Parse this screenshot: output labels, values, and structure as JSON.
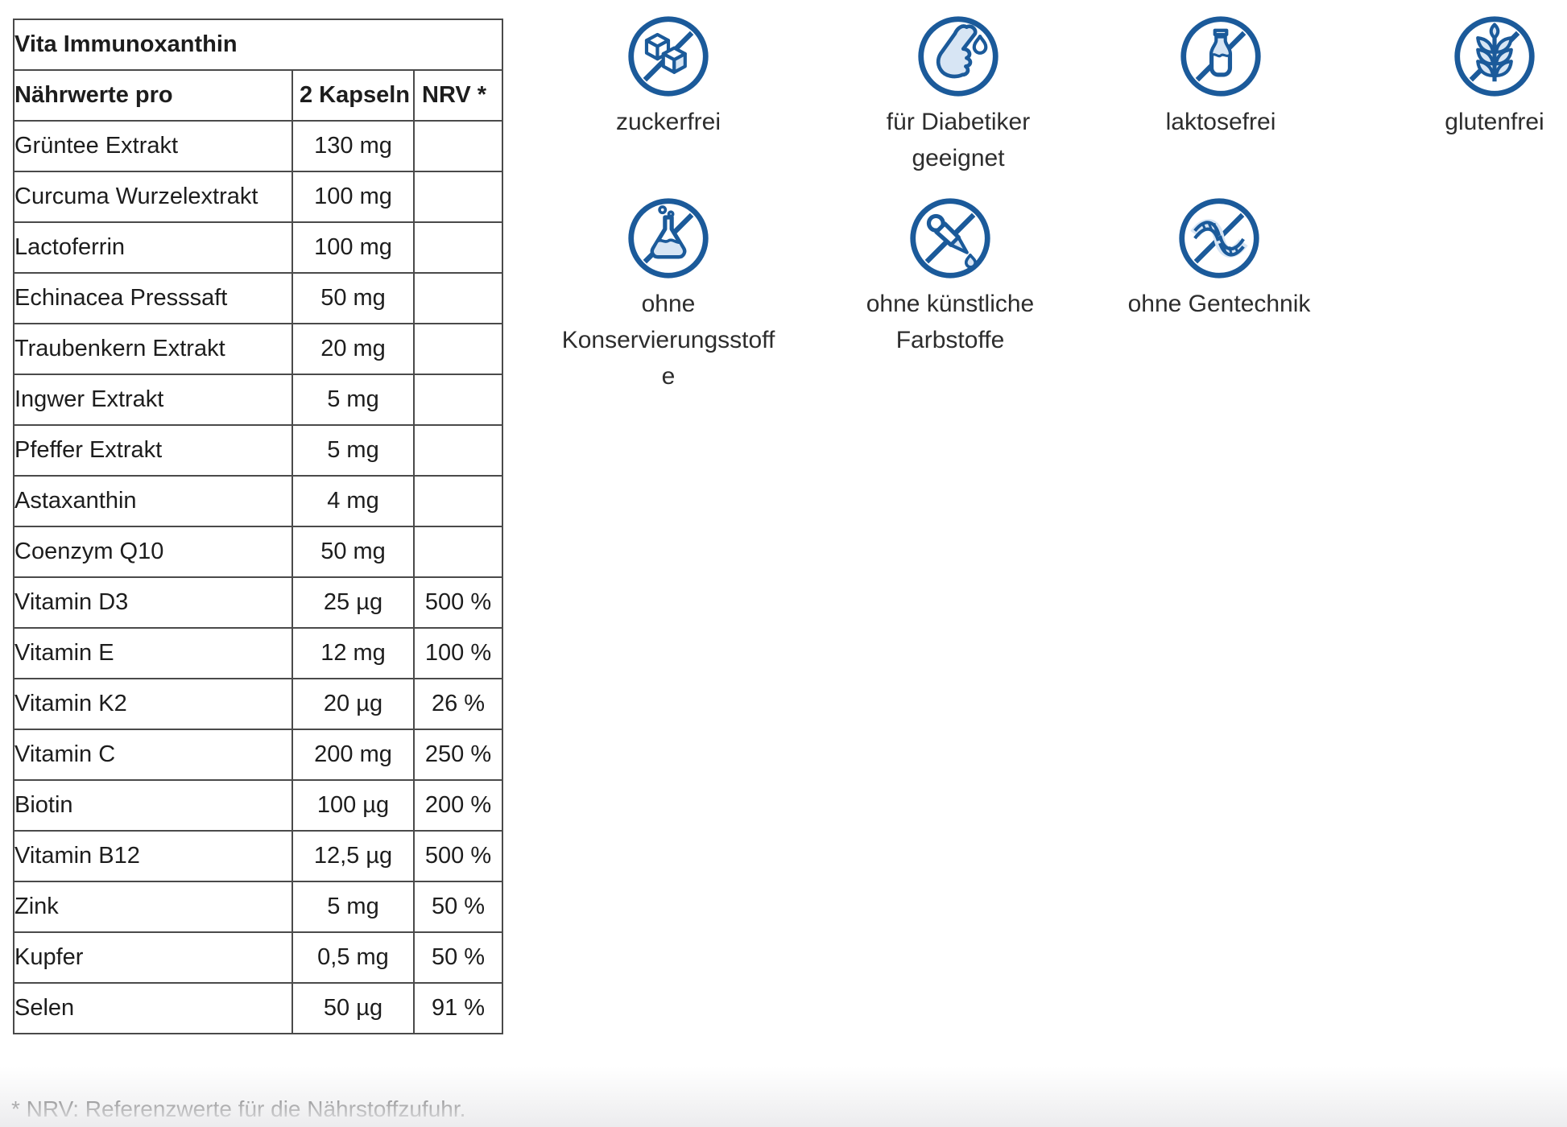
{
  "table": {
    "title": "Vita Immunoxanthin",
    "headers": [
      "Nährwerte pro",
      "2 Kapseln",
      "NRV *"
    ],
    "rows": [
      {
        "name": "Grüntee Extrakt",
        "amount": "130 mg",
        "nrv": ""
      },
      {
        "name": "Curcuma Wurzelextrakt",
        "amount": "100 mg",
        "nrv": ""
      },
      {
        "name": "Lactoferrin",
        "amount": "100 mg",
        "nrv": ""
      },
      {
        "name": "Echinacea Presssaft",
        "amount": "50 mg",
        "nrv": ""
      },
      {
        "name": "Traubenkern Extrakt",
        "amount": "20 mg",
        "nrv": ""
      },
      {
        "name": "Ingwer Extrakt",
        "amount": "5 mg",
        "nrv": ""
      },
      {
        "name": "Pfeffer Extrakt",
        "amount": "5 mg",
        "nrv": ""
      },
      {
        "name": "Astaxanthin",
        "amount": "4 mg",
        "nrv": ""
      },
      {
        "name": "Coenzym Q10",
        "amount": "50 mg",
        "nrv": ""
      },
      {
        "name": "Vitamin D3",
        "amount": "25 µg",
        "nrv": "500 %"
      },
      {
        "name": "Vitamin E",
        "amount": "12 mg",
        "nrv": "100 %"
      },
      {
        "name": "Vitamin K2",
        "amount": "20 µg",
        "nrv": "26 %"
      },
      {
        "name": "Vitamin C",
        "amount": "200 mg",
        "nrv": "250 %"
      },
      {
        "name": "Biotin",
        "amount": "100 µg",
        "nrv": "200 %"
      },
      {
        "name": "Vitamin B12",
        "amount": "12,5 µg",
        "nrv": "500 %"
      },
      {
        "name": "Zink",
        "amount": "5 mg",
        "nrv": "50 %"
      },
      {
        "name": "Kupfer",
        "amount": "0,5 mg",
        "nrv": "50 %"
      },
      {
        "name": "Selen",
        "amount": "50 µg",
        "nrv": "91 %"
      }
    ]
  },
  "footnote": "* NRV: Referenzwerte für die Nährstoffzufuhr.",
  "badges": [
    {
      "icon": "no-sugar-icon",
      "lines": [
        "zuckerfrei"
      ]
    },
    {
      "icon": "diabetic-friendly-icon",
      "lines": [
        "für Diabetiker",
        "geeignet"
      ]
    },
    {
      "icon": "lactose-free-icon",
      "lines": [
        "laktosefrei"
      ]
    },
    {
      "icon": "gluten-free-icon",
      "lines": [
        "glutenfrei"
      ]
    },
    {
      "icon": "no-preservatives-icon",
      "lines": [
        "ohne",
        "Konservierungsstoff",
        "e"
      ]
    },
    {
      "icon": "no-artificial-colors-icon",
      "lines": [
        "ohne künstliche",
        "Farbstoffe"
      ]
    },
    {
      "icon": "no-gmo-icon",
      "lines": [
        "ohne Gentechnik"
      ]
    }
  ],
  "colors": {
    "icon_stroke": "#1b5a9a",
    "icon_fill": "#d7e5f4",
    "table_border": "#4a4a4a",
    "text": "#1d1d1d"
  }
}
